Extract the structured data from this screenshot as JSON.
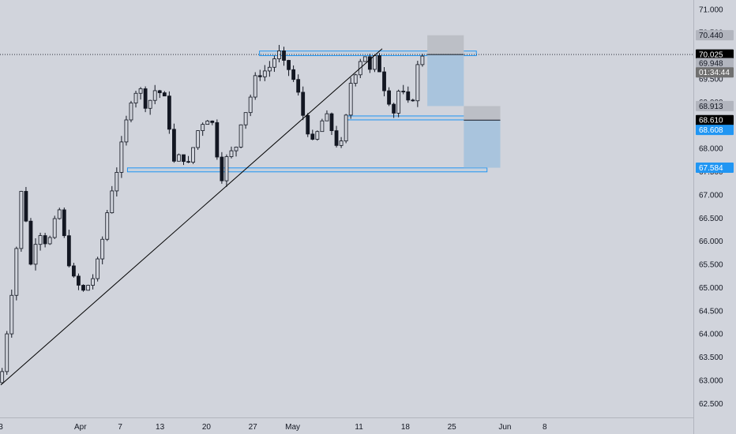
{
  "chart_data": {
    "type": "candlestick",
    "title": "",
    "xlabel": "",
    "ylabel": "",
    "ylim": [
      62.2,
      71.2
    ],
    "x_range": [
      -10,
      81
    ],
    "x_ticks": [
      {
        "label": "3",
        "t": 0
      },
      {
        "label": "Apr",
        "t": 12
      },
      {
        "label": "7",
        "t": 18
      },
      {
        "label": "13",
        "t": 24
      },
      {
        "label": "20",
        "t": 31
      },
      {
        "label": "27",
        "t": 38
      },
      {
        "label": "May",
        "t": 44
      },
      {
        "label": "11",
        "t": 54
      },
      {
        "label": "18",
        "t": 61
      },
      {
        "label": "25",
        "t": 68
      },
      {
        "label": "Jun",
        "t": 76
      },
      {
        "label": "8",
        "t": 82
      }
    ],
    "y_ticks": [
      "71.000",
      "70.500",
      "70.000",
      "69.500",
      "69.000",
      "68.500",
      "68.000",
      "67.500",
      "67.000",
      "66.500",
      "66.000",
      "65.500",
      "65.000",
      "64.500",
      "64.000",
      "63.500",
      "63.000",
      "62.500"
    ],
    "anchors": [
      [
        0.0,
        62.95
      ],
      [
        2.2,
        65.6
      ],
      [
        3.3,
        67.4
      ],
      [
        4.4,
        65.4
      ],
      [
        5.6,
        66.3
      ],
      [
        7.1,
        65.9
      ],
      [
        8.8,
        66.7
      ],
      [
        9.5,
        66.1
      ],
      [
        10.8,
        65.2
      ],
      [
        12.4,
        64.9
      ],
      [
        14.3,
        65.3
      ],
      [
        15.4,
        66.1
      ],
      [
        16.5,
        67.0
      ],
      [
        17.6,
        67.6
      ],
      [
        18.7,
        68.4
      ],
      [
        19.8,
        69.2
      ],
      [
        20.9,
        69.3
      ],
      [
        22.0,
        68.9
      ],
      [
        23.4,
        69.3
      ],
      [
        24.6,
        69.1
      ],
      [
        25.3,
        68.6
      ],
      [
        26.2,
        67.6
      ],
      [
        27.2,
        67.9
      ],
      [
        28.4,
        67.6
      ],
      [
        29.4,
        68.3
      ],
      [
        30.9,
        68.7
      ],
      [
        31.8,
        68.6
      ],
      [
        32.6,
        67.9
      ],
      [
        33.3,
        67.4
      ],
      [
        34.1,
        67.8
      ],
      [
        35.4,
        68.0
      ],
      [
        36.2,
        68.6
      ],
      [
        37.2,
        68.9
      ],
      [
        38.6,
        69.6
      ],
      [
        40.3,
        69.7
      ],
      [
        41.8,
        70.1
      ],
      [
        42.6,
        69.8
      ],
      [
        43.5,
        69.7
      ],
      [
        44.6,
        69.3
      ],
      [
        45.6,
        68.7
      ],
      [
        46.3,
        68.4
      ],
      [
        47.2,
        68.0
      ],
      [
        48.0,
        68.5
      ],
      [
        49.0,
        68.7
      ],
      [
        50.2,
        68.3
      ],
      [
        51.1,
        67.9
      ],
      [
        52.0,
        68.6
      ],
      [
        52.7,
        69.4
      ],
      [
        54.1,
        69.9
      ],
      [
        54.8,
        70.1
      ],
      [
        55.5,
        69.6
      ],
      [
        56.6,
        70.0
      ],
      [
        57.6,
        69.4
      ],
      [
        58.4,
        69.1
      ],
      [
        59.5,
        68.7
      ],
      [
        60.1,
        69.4
      ],
      [
        61.2,
        68.9
      ],
      [
        62.1,
        69.1
      ],
      [
        63.0,
        69.9
      ],
      [
        63.8,
        70.1
      ],
      [
        64.2,
        70.02
      ]
    ],
    "candle_step": 0.72,
    "trendline": {
      "from": [
        0.0,
        62.9
      ],
      "to": [
        57.5,
        70.15
      ]
    },
    "zones": [
      {
        "name": "resistance-zone",
        "t0": 39.0,
        "t1": 71.7,
        "y_low": 70.0,
        "y_high": 70.1
      },
      {
        "name": "mid-support-zone",
        "t0": 52.0,
        "t1": 72.0,
        "y_low": 68.7,
        "y_high": 68.66
      },
      {
        "name": "lower-support-zone",
        "t0": 19.1,
        "t1": 73.3,
        "y_low": 67.5,
        "y_high": 67.58
      }
    ],
    "positions": [
      {
        "name": "short-position-1",
        "t0": 64.3,
        "t1": 69.8,
        "entry": 70.025,
        "stop": 70.44,
        "target": 68.913
      },
      {
        "name": "short-position-2",
        "t0": 69.8,
        "t1": 75.3,
        "entry": 68.61,
        "stop": 68.913,
        "target": 67.584
      }
    ],
    "current_price": 70.025,
    "price_tags": [
      {
        "name": "stop-price-tag",
        "label": "70.440",
        "y": 70.44,
        "bg": "#b2b5be",
        "fg": "#131722"
      },
      {
        "name": "last-price-tag",
        "label": "70.025",
        "y": 70.025,
        "bg": "#000000",
        "fg": "#ffffff"
      },
      {
        "name": "price-tag-69948",
        "label": "69.948",
        "y": 69.84,
        "bg": "#b2b5be",
        "fg": "#131722"
      },
      {
        "name": "countdown-tag",
        "label": "01:34:44",
        "y": 69.64,
        "bg": "#707070",
        "fg": "#ffffff"
      },
      {
        "name": "target-price-tag",
        "label": "68.913",
        "y": 68.913,
        "bg": "#b2b5be",
        "fg": "#131722"
      },
      {
        "name": "entry-price-tag",
        "label": "68.610",
        "y": 68.61,
        "bg": "#000000",
        "fg": "#ffffff"
      },
      {
        "name": "support-price-tag",
        "label": "68.608",
        "y": 68.4,
        "bg": "#2196f3",
        "fg": "#ffffff"
      },
      {
        "name": "lower-support-tag",
        "label": "67.584",
        "y": 67.584,
        "bg": "#2196f3",
        "fg": "#ffffff"
      }
    ],
    "colors": {
      "background": "#d1d4dc",
      "candle": "#131722",
      "zone_stroke": "#2196f3",
      "profit_fill": "#a9c4dd",
      "stop_fill": "#bcbfc6",
      "axis_text": "#131722"
    }
  }
}
